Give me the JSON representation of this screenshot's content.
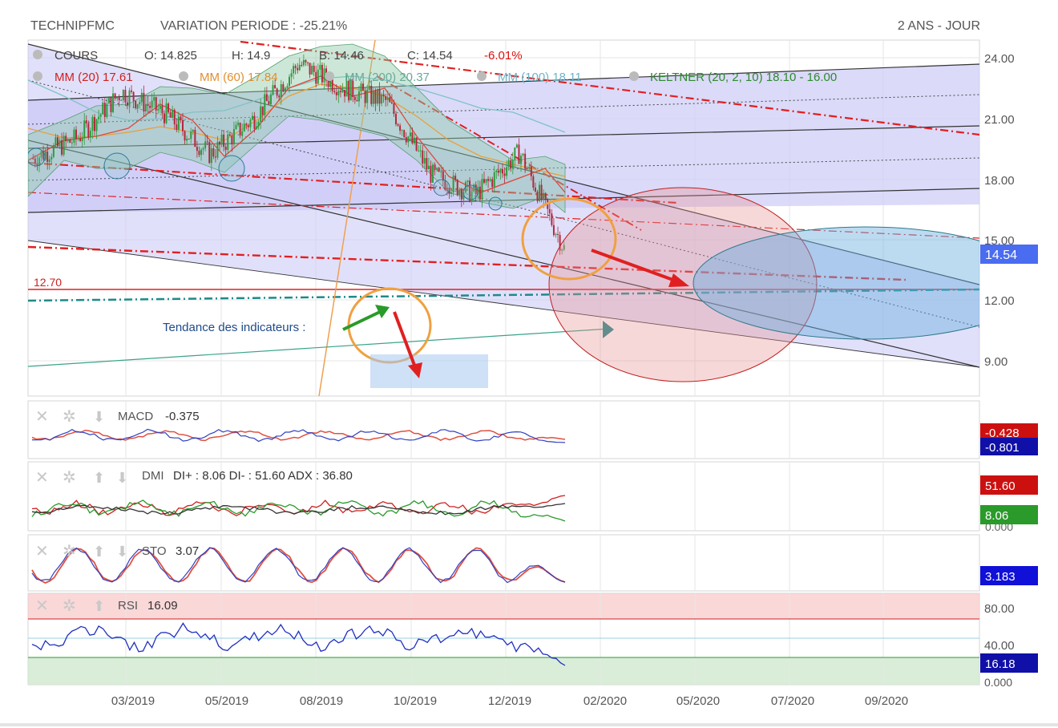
{
  "header": {
    "symbol": "TECHNIPFMC",
    "variation": "VARIATION PERIODE : -25.21%",
    "period": "2 ANS - JOUR"
  },
  "legend": {
    "cours_label": "COURS",
    "open": "O: 14.825",
    "high": "H: 14.9",
    "low": "B: 14.46",
    "close": "C: 14.54",
    "change": "-6.01%",
    "mm20": "MM (20)  17.61",
    "mm60": "MM (60)  17.84",
    "mm200": "MM (200)  20.37",
    "mm100": "MM (100)  18.11",
    "keltner": "KELTNER (20, 2, 10)  18.10 - 16.00"
  },
  "annotations": {
    "support_label": "12.70",
    "trend_label": "Tendance des indicateurs :"
  },
  "price_axis": {
    "ticks": [
      "24.00",
      "21.00",
      "18.00",
      "15.00",
      "12.00",
      "9.00"
    ],
    "last_price_tag": "14.54"
  },
  "x_axis": {
    "labels": [
      "03/2019",
      "05/2019",
      "08/2019",
      "10/2019",
      "12/2019",
      "02/2020",
      "05/2020",
      "07/2020",
      "09/2020"
    ]
  },
  "panels": {
    "macd": {
      "label": "MACD",
      "value": "-0.375",
      "tag1": "-0.428",
      "tag2": "-0.801"
    },
    "dmi": {
      "label": "DMI",
      "value": "DI+ : 8.06 DI- : 51.60 ADX : 36.80",
      "tag1": "51.60",
      "tag2": "8.06",
      "tag3": "0.000"
    },
    "sto": {
      "label": "STO",
      "value": "3.07",
      "tag1": "3.183"
    },
    "rsi": {
      "label": "RSI",
      "value": "16.09",
      "ticks": [
        "80.00",
        "40.00",
        "0.000"
      ],
      "tag1": "16.18"
    }
  },
  "colors": {
    "candle_up": "#2e9a3c",
    "candle_down": "#b3263b",
    "channel_fill": "#c9c6f5",
    "mm20": "#e0473c",
    "mm60": "#e6a03b",
    "mm200": "#7fc3c5",
    "mm100": "#6fb4c8",
    "keltner": "#2d8a2d",
    "annotation_red": "#e02020",
    "price_tag": "#4a6cf0"
  },
  "chart_data": {
    "type": "candlestick",
    "title": "TECHNIPFMC",
    "x": [
      "2019-01",
      "2019-02",
      "2019-03",
      "2019-04",
      "2019-05",
      "2019-06",
      "2019-07",
      "2019-08",
      "2019-09",
      "2019-10",
      "2019-11",
      "2019-12",
      "2020-01"
    ],
    "close": [
      19.0,
      20.0,
      22.3,
      21.2,
      19.2,
      21.0,
      23.7,
      22.5,
      21.8,
      18.2,
      17.2,
      19.3,
      14.54
    ],
    "last_close": 14.54,
    "ylim": [
      8.0,
      25.0
    ],
    "support_level": 12.7,
    "indicators": {
      "mm20": 17.61,
      "mm60": 17.84,
      "mm200": 20.37,
      "mm100": 18.11,
      "keltner_upper": 18.1,
      "keltner_lower": 16.0
    }
  }
}
